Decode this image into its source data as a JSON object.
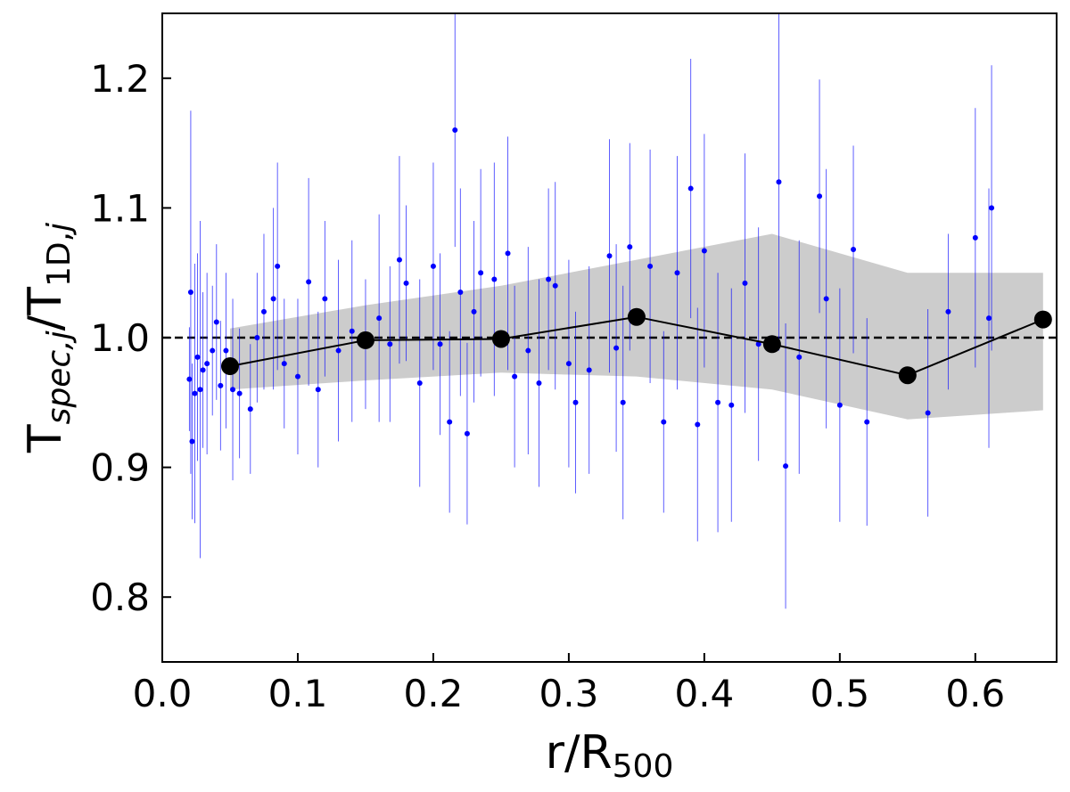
{
  "chart_data": {
    "type": "scatter",
    "xlabel": [
      {
        "text": "r/R"
      },
      {
        "text": "500",
        "sub": true
      }
    ],
    "ylabel": [
      {
        "text": "T"
      },
      {
        "text": "spec,j",
        "sub": true,
        "italic": true
      },
      {
        "text": "/T"
      },
      {
        "text": "1D,",
        "sub": true
      },
      {
        "text": "j",
        "sub": true,
        "italic": true
      }
    ],
    "xlim": [
      0,
      0.66
    ],
    "ylim": [
      0.75,
      1.25
    ],
    "xticks": [
      {
        "value": 0,
        "label": "0.0"
      },
      0.1,
      0.2,
      0.3,
      0.4,
      0.5,
      0.6
    ],
    "yticks": [
      0.8,
      0.9,
      {
        "value": 1,
        "label": "1.0"
      },
      1.1,
      1.2
    ],
    "reference_line": 1,
    "points": {
      "color": "#0000ff",
      "x": [
        0.02,
        0.021,
        0.022,
        0.024,
        0.026,
        0.028,
        0.03,
        0.033,
        0.037,
        0.04,
        0.043,
        0.047,
        0.052,
        0.057,
        0.065,
        0.07,
        0.075,
        0.082,
        0.085,
        0.09,
        0.1,
        0.108,
        0.115,
        0.12,
        0.13,
        0.14,
        0.15,
        0.16,
        0.168,
        0.175,
        0.18,
        0.19,
        0.2,
        0.205,
        0.212,
        0.216,
        0.22,
        0.225,
        0.23,
        0.235,
        0.245,
        0.255,
        0.26,
        0.27,
        0.278,
        0.285,
        0.29,
        0.3,
        0.305,
        0.315,
        0.33,
        0.335,
        0.34,
        0.345,
        0.36,
        0.37,
        0.38,
        0.39,
        0.395,
        0.4,
        0.41,
        0.42,
        0.43,
        0.44,
        0.455,
        0.46,
        0.47,
        0.485,
        0.49,
        0.5,
        0.51,
        0.52,
        0.565,
        0.58,
        0.6,
        0.61,
        0.612
      ],
      "y": [
        0.968,
        1.035,
        0.92,
        0.957,
        0.985,
        0.96,
        0.975,
        0.98,
        0.99,
        1.012,
        0.963,
        0.99,
        0.96,
        0.957,
        0.945,
        1.0,
        1.02,
        1.03,
        1.055,
        0.98,
        0.97,
        1.043,
        0.96,
        1.03,
        0.99,
        1.005,
        0.995,
        1.015,
        0.995,
        1.06,
        1.042,
        0.965,
        1.055,
        0.995,
        0.935,
        1.16,
        1.035,
        0.926,
        1.02,
        1.05,
        1.045,
        1.065,
        0.97,
        0.99,
        0.965,
        1.045,
        1.04,
        0.98,
        0.95,
        0.975,
        1.063,
        0.992,
        0.95,
        1.07,
        1.055,
        0.935,
        1.05,
        1.115,
        0.933,
        1.067,
        0.95,
        0.948,
        1.042,
        0.995,
        1.12,
        0.901,
        0.985,
        1.109,
        1.03,
        0.948,
        1.068,
        0.935,
        0.942,
        1.02,
        1.077,
        1.015,
        1.1
      ],
      "err": [
        0.04,
        0.14,
        0.06,
        0.1,
        0.08,
        0.13,
        0.06,
        0.07,
        0.05,
        0.06,
        0.05,
        0.06,
        0.07,
        0.05,
        0.05,
        0.05,
        0.06,
        0.07,
        0.08,
        0.05,
        0.06,
        0.08,
        0.06,
        0.06,
        0.07,
        0.07,
        0.05,
        0.08,
        0.06,
        0.08,
        0.06,
        0.08,
        0.08,
        0.07,
        0.07,
        0.09,
        0.08,
        0.07,
        0.07,
        0.08,
        0.09,
        0.09,
        0.07,
        0.08,
        0.08,
        0.07,
        0.08,
        0.08,
        0.07,
        0.08,
        0.09,
        0.08,
        0.09,
        0.08,
        0.09,
        0.07,
        0.09,
        0.1,
        0.09,
        0.09,
        0.1,
        0.09,
        0.1,
        0.09,
        0.13,
        0.11,
        0.09,
        0.09,
        0.1,
        0.09,
        0.08,
        0.08,
        0.08,
        0.06,
        0.1,
        0.1,
        0.11
      ]
    },
    "bins": {
      "color": "#000000",
      "x": [
        0.05,
        0.15,
        0.25,
        0.35,
        0.45,
        0.55,
        0.65
      ],
      "y": [
        0.978,
        0.998,
        0.999,
        1.016,
        0.995,
        0.971,
        1.014
      ],
      "band_upper": [
        1.007,
        1.025,
        1.04,
        1.06,
        1.08,
        1.05,
        1.05
      ],
      "band_lower": [
        0.96,
        0.967,
        0.973,
        0.97,
        0.96,
        0.937,
        0.944
      ],
      "band_color": "#cccccc"
    }
  }
}
